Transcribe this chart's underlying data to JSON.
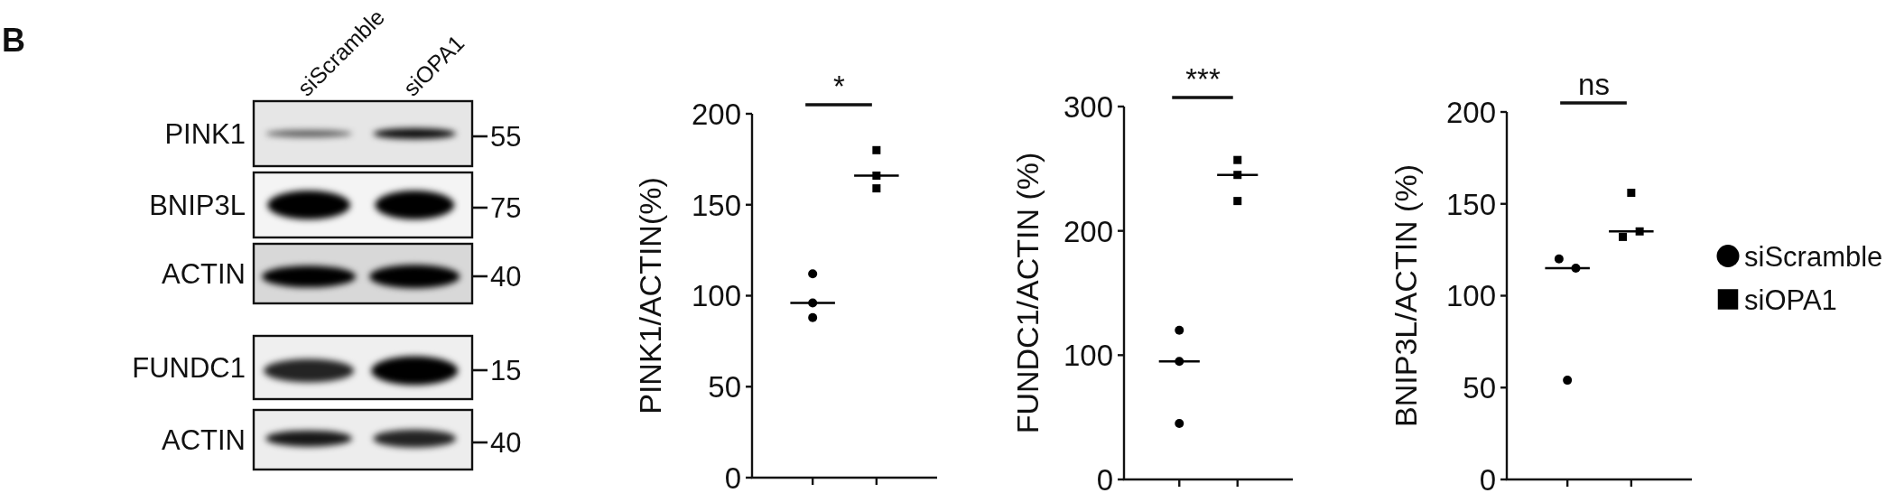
{
  "chart_data": [
    {
      "type": "other",
      "annotations": [
        "B"
      ],
      "categories": [
        "siScramble",
        "siOPA1"
      ],
      "y_categories": [
        "PINK1",
        "BNIP3L",
        "ACTIN",
        "FUNDC1",
        "ACTIN"
      ],
      "y2_categories": [
        "55",
        "75",
        "40",
        "15",
        "40"
      ]
    },
    {
      "type": "scatter",
      "ylabel": "PINK1/ACTIN(%)",
      "categories": [
        null,
        null
      ],
      "ylim": [
        0,
        200
      ],
      "yticks": [
        0,
        50,
        100,
        150,
        200
      ],
      "tick_labels": "y",
      "annotations": [
        "*"
      ],
      "ref_lines": [
        {
          "axis": "y",
          "value": 96,
          "color": "#000000"
        },
        {
          "axis": "y",
          "value": 166,
          "color": "#000000"
        }
      ],
      "series": [
        {
          "color": "#000000",
          "marker": "circle",
          "values": [
            112,
            null
          ]
        },
        {
          "color": "#000000",
          "marker": "circle",
          "values": [
            96,
            null
          ]
        },
        {
          "color": "#000000",
          "marker": "circle",
          "values": [
            88,
            null
          ]
        },
        {
          "color": "#000000",
          "marker": "square",
          "values": [
            null,
            180
          ]
        },
        {
          "color": "#000000",
          "marker": "square",
          "values": [
            null,
            166
          ]
        },
        {
          "color": "#000000",
          "marker": "square",
          "values": [
            null,
            159
          ]
        }
      ]
    },
    {
      "type": "scatter",
      "ylabel": "FUNDC1/ACTIN (%)",
      "categories": [
        null,
        null
      ],
      "ylim": [
        0,
        300
      ],
      "yticks": [
        0,
        100,
        200,
        300
      ],
      "tick_labels": "y",
      "annotations": [
        "***"
      ],
      "ref_lines": [
        {
          "axis": "y",
          "value": 95,
          "color": "#000000"
        },
        {
          "axis": "y",
          "value": 245,
          "color": "#000000"
        }
      ],
      "series": [
        {
          "color": "#000000",
          "marker": "circle",
          "values": [
            120,
            null
          ]
        },
        {
          "color": "#000000",
          "marker": "circle",
          "values": [
            95,
            null
          ]
        },
        {
          "color": "#000000",
          "marker": "circle",
          "values": [
            45,
            null
          ]
        },
        {
          "color": "#000000",
          "marker": "square",
          "values": [
            null,
            257
          ]
        },
        {
          "color": "#000000",
          "marker": "square",
          "values": [
            null,
            245
          ]
        },
        {
          "color": "#000000",
          "marker": "square",
          "values": [
            null,
            224
          ]
        }
      ]
    },
    {
      "type": "scatter",
      "ylabel": "BNIP3L/ACTIN (%)",
      "categories": [
        null,
        null
      ],
      "ylim": [
        0,
        200
      ],
      "yticks": [
        0,
        50,
        100,
        150,
        200
      ],
      "tick_labels": "y",
      "annotations": [
        "ns"
      ],
      "legend": "right",
      "ref_lines": [
        {
          "axis": "y",
          "value": 115,
          "color": "#000000"
        },
        {
          "axis": "y",
          "value": 135,
          "color": "#000000"
        }
      ],
      "series": [
        {
          "name": "siScramble",
          "color": "#000000",
          "marker": "circle",
          "values": [
            120,
            null
          ]
        },
        {
          "color": "#000000",
          "marker": "circle",
          "values": [
            115,
            null
          ]
        },
        {
          "color": "#000000",
          "marker": "circle",
          "values": [
            54,
            null
          ]
        },
        {
          "name": "siOPA1",
          "color": "#000000",
          "marker": "square",
          "values": [
            null,
            132
          ]
        },
        {
          "color": "#000000",
          "marker": "square",
          "values": [
            null,
            135
          ]
        },
        {
          "color": "#000000",
          "marker": "square",
          "values": [
            null,
            156
          ]
        }
      ]
    }
  ]
}
